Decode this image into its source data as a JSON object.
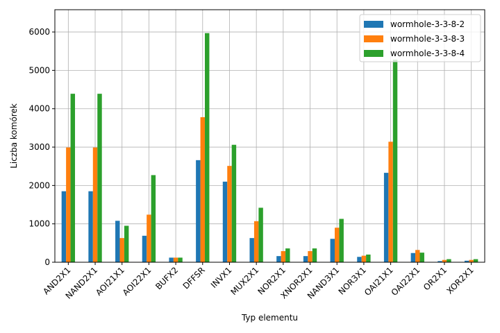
{
  "chart_data": {
    "type": "bar",
    "xlabel": "Typ elementu",
    "ylabel": "Liczba komórek",
    "ylim": [
      0,
      6580
    ],
    "yticks": [
      0,
      1000,
      2000,
      3000,
      4000,
      5000,
      6000
    ],
    "grid": true,
    "legend_position": "top-right",
    "categories": [
      "AND2X1",
      "NAND2X1",
      "AOI21X1",
      "AOI22X1",
      "BUFX2",
      "DFFSR",
      "INVX1",
      "MUX2X1",
      "NOR2X1",
      "XNOR2X1",
      "NAND3X1",
      "NOR3X1",
      "OAI21X1",
      "OAI22X1",
      "OR2X1",
      "XOR2X1"
    ],
    "series": [
      {
        "name": "wormhole-3-3-8-2",
        "color": "#1f77b4",
        "values": [
          1850,
          1850,
          1080,
          690,
          120,
          2660,
          2100,
          630,
          160,
          160,
          610,
          140,
          2330,
          240,
          30,
          40
        ]
      },
      {
        "name": "wormhole-3-3-8-3",
        "color": "#ff7f0e",
        "values": [
          2990,
          2990,
          630,
          1240,
          120,
          3780,
          2510,
          1070,
          290,
          290,
          900,
          170,
          3140,
          320,
          60,
          60
        ]
      },
      {
        "name": "wormhole-3-3-8-4",
        "color": "#2ca02c",
        "values": [
          4390,
          4390,
          950,
          2270,
          120,
          5970,
          3060,
          1420,
          360,
          360,
          1130,
          200,
          5280,
          250,
          80,
          80
        ]
      }
    ]
  }
}
